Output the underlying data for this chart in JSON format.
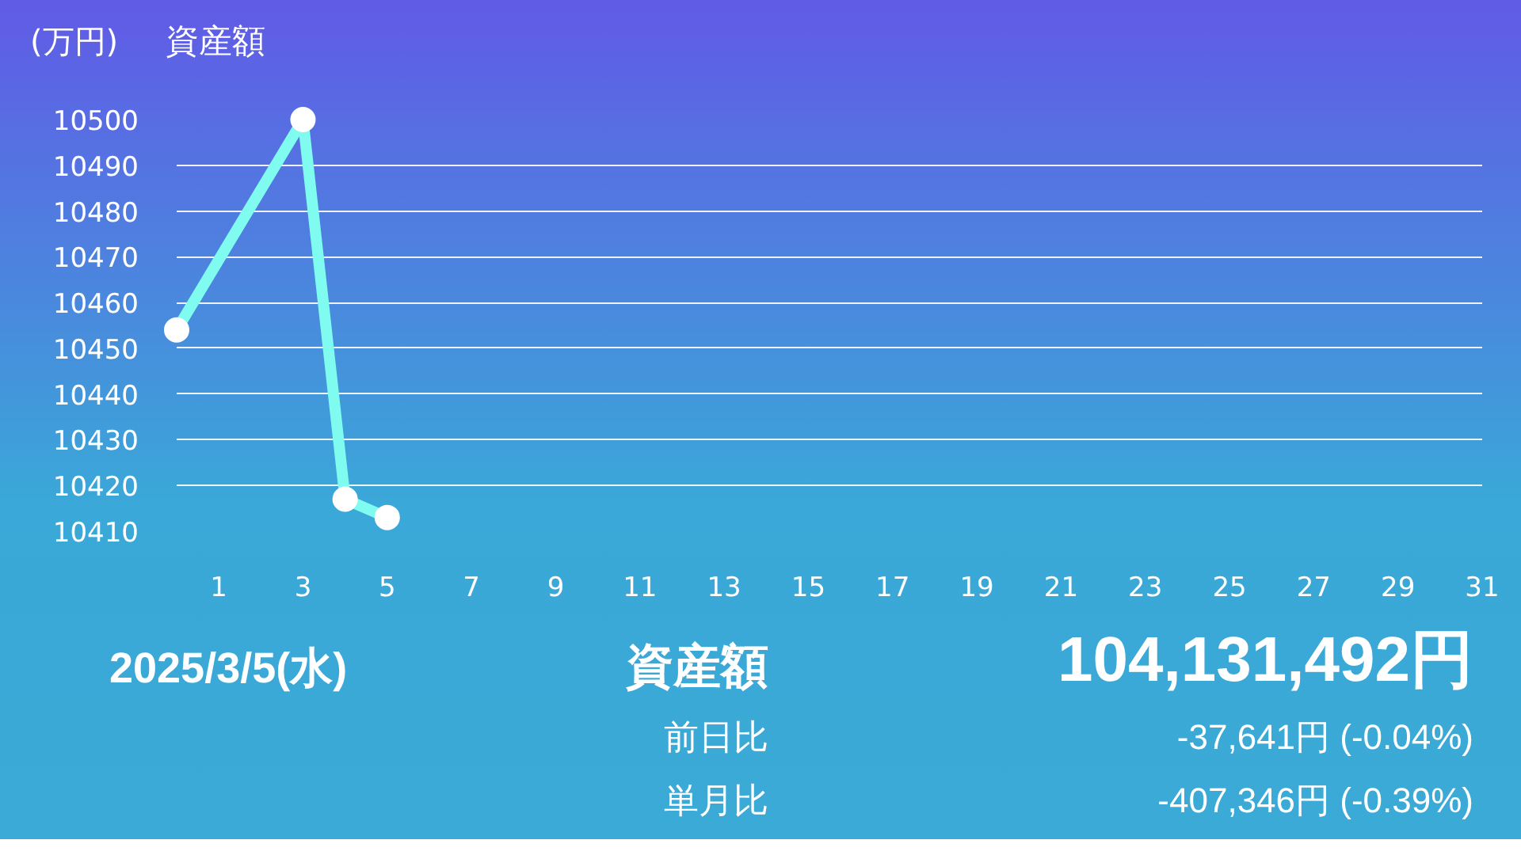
{
  "chart_data": {
    "type": "line",
    "title": "資産額",
    "ylabel": "(万円)",
    "x": [
      0,
      3,
      4,
      5
    ],
    "series": [
      {
        "color": "#7ffcef",
        "values": [
          10454,
          10500,
          10417,
          10413
        ]
      }
    ],
    "xlim": [
      0,
      31
    ],
    "xticks": [
      1,
      3,
      5,
      7,
      9,
      11,
      13,
      15,
      17,
      19,
      21,
      23,
      25,
      27,
      29,
      31
    ],
    "ylim": [
      10410,
      10500
    ],
    "yticks": [
      10410,
      10420,
      10430,
      10440,
      10450,
      10460,
      10470,
      10480,
      10490,
      10500
    ],
    "grid": "y",
    "marker": "circle",
    "line_style": "solid",
    "annotations": [
      "2025/3/5(水)",
      "資産額",
      "104,131,492円",
      "前日比",
      "-37,641円 (-0.04%)",
      "単月比",
      "-407,346円 (-0.39%)"
    ]
  }
}
